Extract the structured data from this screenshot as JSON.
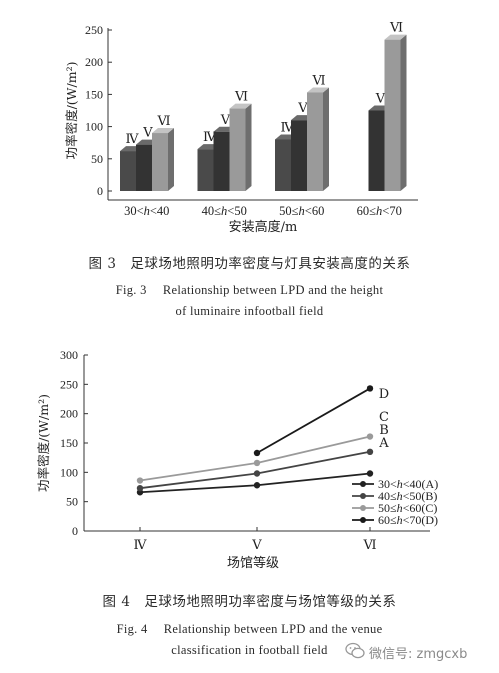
{
  "chart_data": [
    {
      "type": "bar",
      "figure": "3",
      "ylabel": "功率密度/(W/m²)",
      "xlabel": "安装高度/m",
      "ylim": [
        0,
        250
      ],
      "yticks": [
        "0",
        "50",
        "100",
        "150",
        "200",
        "250"
      ],
      "categories": [
        "30<h<40",
        "40≤h<50",
        "50≤h<60",
        "60≤h<70"
      ],
      "series": [
        {
          "name": "Ⅳ",
          "color": "#4a4a4a",
          "values": [
            62,
            65,
            80,
            null
          ]
        },
        {
          "name": "Ⅴ",
          "color": "#333333",
          "values": [
            72,
            92,
            110,
            125
          ]
        },
        {
          "name": "Ⅵ",
          "color": "#9a9a9a",
          "values": [
            90,
            128,
            153,
            235
          ]
        }
      ],
      "bar_labels": [
        [
          "Ⅳ",
          "Ⅴ",
          "Ⅵ"
        ],
        [
          "Ⅳ",
          "Ⅴ",
          "Ⅵ"
        ],
        [
          "Ⅳ",
          "Ⅴ",
          "Ⅵ"
        ],
        [
          "",
          "Ⅴ",
          "Ⅵ"
        ]
      ],
      "caption_cn": "图 3　足球场地照明功率密度与灯具安装高度的关系",
      "caption_en_1": "Fig. 3　 Relationship between LPD and the height",
      "caption_en_2": "of luminaire infootball field"
    },
    {
      "type": "line",
      "figure": "4",
      "ylabel": "功率密度/(W/m²)",
      "xlabel": "场馆等级",
      "ylim": [
        0,
        300
      ],
      "yticks": [
        "0",
        "50",
        "100",
        "150",
        "200",
        "250",
        "300"
      ],
      "categories": [
        "Ⅳ",
        "Ⅴ",
        "Ⅵ"
      ],
      "series": [
        {
          "name": "30<h<40(A)",
          "end_label": "A",
          "color": "#222222",
          "values": [
            66,
            78,
            98
          ]
        },
        {
          "name": "40≤h<50(B)",
          "end_label": "B",
          "color": "#444444",
          "values": [
            73,
            98,
            135
          ]
        },
        {
          "name": "50≤h<60(C)",
          "end_label": "C",
          "color": "#9a9a9a",
          "values": [
            86,
            116,
            161
          ]
        },
        {
          "name": "60≤h<70(D)",
          "end_label": "D",
          "color": "#1a1a1a",
          "values": [
            null,
            133,
            243
          ]
        }
      ],
      "end_label_order": [
        "D",
        "C",
        "B",
        "A"
      ],
      "legend_position": "bottom-right",
      "caption_cn": "图 4　足球场地照明功率密度与场馆等级的关系",
      "caption_en_1": "Fig. 4　 Relationship between LPD and the venue",
      "caption_en_2": "classification in football field"
    }
  ],
  "watermark": "微信号: zmgcxb"
}
